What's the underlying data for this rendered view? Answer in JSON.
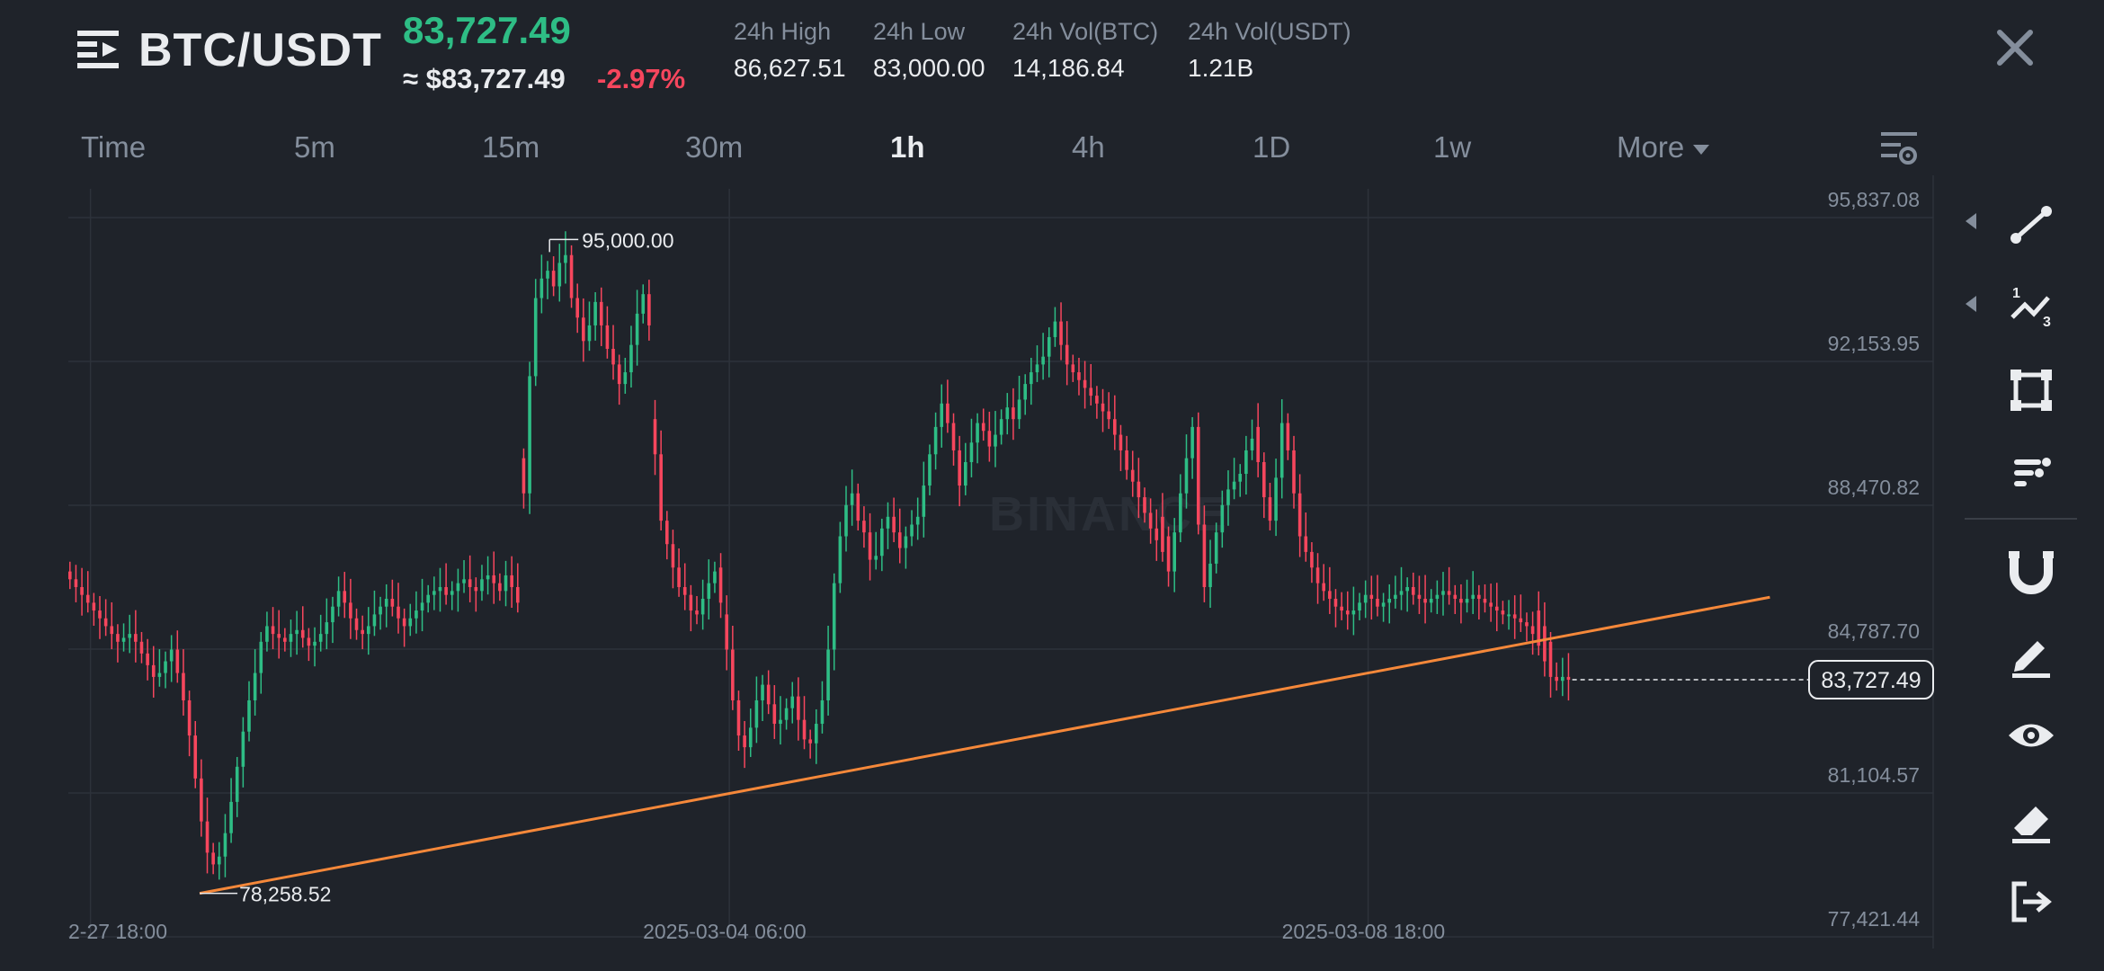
{
  "header": {
    "pair": "BTC/USDT",
    "last_price": "83,727.49",
    "price_usd": "≈ $83,727.49",
    "change_pct": "-2.97%",
    "stats": [
      {
        "label": "24h High",
        "value": "86,627.51"
      },
      {
        "label": "24h Low",
        "value": "83,000.00"
      },
      {
        "label": "24h Vol(BTC)",
        "value": "14,186.84"
      },
      {
        "label": "24h Vol(USDT)",
        "value": "1.21B"
      }
    ]
  },
  "tabs": [
    "Time",
    "5m",
    "15m",
    "30m",
    "1h",
    "4h",
    "1D",
    "1w",
    "More"
  ],
  "active_tab": "1h",
  "sidebar_tools": [
    "trend-line-icon",
    "fibonacci-icon",
    "rectangle-icon",
    "indicator-list-icon",
    "magnet-icon",
    "pencil-icon",
    "visibility-eye-icon",
    "eraser-icon",
    "exit-icon"
  ],
  "colors": {
    "background": "#1f232a",
    "up": "#2ebd85",
    "down": "#f6465d",
    "trendline": "#f5883a",
    "grid": "#2d323a",
    "muted_text": "#848e9c"
  },
  "chart_data": {
    "type": "candlestick",
    "watermark": "BINANCE",
    "interval": "1h",
    "y_ticks": [
      "95,837.08",
      "92,153.95",
      "88,470.82",
      "84,787.70",
      "81,104.57",
      "77,421.44"
    ],
    "y_tick_values": [
      95837.08,
      92153.95,
      88470.82,
      84787.7,
      81104.57,
      77421.44
    ],
    "ylim": [
      77421.44,
      95837.08
    ],
    "x_ticks": [
      "2-27 18:00",
      "2025-03-04 06:00",
      "2025-03-08 18:00"
    ],
    "x_tick_candle_index": [
      1,
      108,
      215
    ],
    "annotations": [
      {
        "label": "95,000.00",
        "value": 95000.0,
        "candle_index": 80,
        "kind": "high"
      },
      {
        "label": "78,258.52",
        "value": 78258.52,
        "candle_index": 22,
        "kind": "low"
      }
    ],
    "current_price_label": "83,727.49",
    "current_price": 83727.49,
    "trendline": {
      "from": {
        "candle_index": 22,
        "value": 78258.52
      },
      "to": {
        "candle_index": 285,
        "value": 85840
      }
    },
    "candles_source": "approximate shape read from screenshot",
    "close_series": [
      86300,
      86100,
      85900,
      85700,
      85500,
      85300,
      85100,
      84900,
      84700,
      84800,
      84900,
      84700,
      84400,
      84100,
      83800,
      83900,
      84200,
      84500,
      83900,
      83200,
      82300,
      81200,
      80100,
      79300,
      79000,
      79200,
      79800,
      80600,
      81500,
      82400,
      83200,
      83900,
      84700,
      85100,
      84900,
      84800,
      84700,
      84900,
      85000,
      84800,
      84600,
      84700,
      84900,
      85200,
      85600,
      86000,
      85700,
      85300,
      85000,
      84900,
      85100,
      85400,
      85600,
      85800,
      85600,
      85300,
      85100,
      85300,
      85500,
      85700,
      85900,
      86000,
      86100,
      85900,
      86000,
      86200,
      86300,
      86100,
      86000,
      86300,
      86400,
      86200,
      86000,
      86400,
      86100,
      85700,
      88500,
      91500,
      93500,
      94000,
      94200,
      93800,
      94400,
      94600,
      93500,
      93000,
      92400,
      92800,
      93400,
      92800,
      92200,
      91800,
      91300,
      91600,
      92300,
      93100,
      93600,
      92800,
      89500,
      87800,
      87200,
      86600,
      86100,
      85900,
      85500,
      85400,
      85800,
      86200,
      86500,
      85700,
      84500,
      83200,
      82300,
      82000,
      82500,
      83200,
      83600,
      83100,
      82600,
      82700,
      83000,
      83300,
      82700,
      82200,
      82100,
      82600,
      83200,
      84500,
      86200,
      87400,
      88200,
      88500,
      87800,
      87500,
      86800,
      86900,
      87600,
      87900,
      87500,
      87100,
      87400,
      87700,
      87900,
      88700,
      89500,
      90200,
      90800,
      90300,
      89600,
      88700,
      89300,
      89800,
      90300,
      90100,
      89700,
      90000,
      90400,
      90700,
      90400,
      90900,
      91300,
      91600,
      91800,
      92000,
      92500,
      92900,
      92300,
      91800,
      91600,
      91400,
      91200,
      91000,
      90800,
      90600,
      90400,
      90000,
      89600,
      89100,
      88800,
      88400,
      88000,
      87600,
      87300,
      87000,
      86500,
      87500,
      88500,
      89400,
      90200,
      87700,
      86100,
      86700,
      87500,
      88200,
      88600,
      88800,
      89000,
      89600,
      89900,
      89300,
      88400,
      87800,
      88900,
      90300,
      89600,
      88500,
      87400,
      87000,
      86600,
      86200,
      86000,
      85800,
      85600,
      85500,
      85400,
      85500,
      85700,
      85900,
      85800,
      85600,
      85700,
      85800,
      85900,
      86000,
      86100,
      85900,
      85800,
      85700,
      85800,
      85900,
      86000,
      85900,
      85800,
      85700,
      85800,
      85900,
      85800,
      85700,
      85600,
      85500,
      85400,
      85400,
      85300,
      85200,
      85100,
      84900,
      84600,
      84200,
      83800,
      83700,
      83800,
      83727.49
    ],
    "down_gap_candles": [
      76,
      98,
      109,
      110,
      183,
      184,
      199,
      200,
      246,
      247,
      248
    ]
  }
}
